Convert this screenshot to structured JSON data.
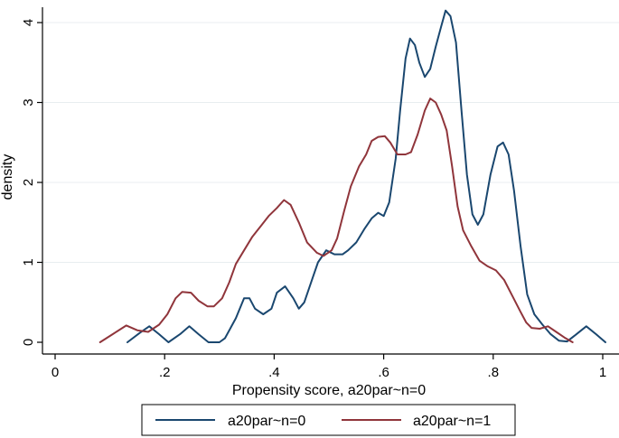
{
  "chart_data": {
    "type": "line",
    "title": "",
    "xlabel": "Propensity score, a20par~n=0",
    "ylabel": "density",
    "xlim": [
      0,
      1.0
    ],
    "ylim": [
      0,
      4.2
    ],
    "xticks": [
      0,
      0.2,
      0.4,
      0.6,
      0.8,
      1
    ],
    "xtick_labels": [
      "0",
      ".2",
      ".4",
      ".6",
      ".8",
      "1"
    ],
    "yticks": [
      0,
      1,
      2,
      3,
      4
    ],
    "ytick_labels": [
      "0",
      "1",
      "2",
      "3",
      "4"
    ],
    "grid": "horizontal",
    "legend_position": "bottom",
    "series": [
      {
        "name": "a20par~n=0",
        "color": "#1a476f",
        "points": [
          [
            0.132,
            0.0
          ],
          [
            0.155,
            0.12
          ],
          [
            0.172,
            0.2
          ],
          [
            0.19,
            0.1
          ],
          [
            0.207,
            0.0
          ],
          [
            0.228,
            0.1
          ],
          [
            0.245,
            0.2
          ],
          [
            0.262,
            0.1
          ],
          [
            0.28,
            0.0
          ],
          [
            0.3,
            0.0
          ],
          [
            0.31,
            0.05
          ],
          [
            0.33,
            0.3
          ],
          [
            0.345,
            0.55
          ],
          [
            0.355,
            0.55
          ],
          [
            0.365,
            0.42
          ],
          [
            0.38,
            0.35
          ],
          [
            0.395,
            0.42
          ],
          [
            0.405,
            0.62
          ],
          [
            0.42,
            0.7
          ],
          [
            0.435,
            0.55
          ],
          [
            0.445,
            0.42
          ],
          [
            0.455,
            0.5
          ],
          [
            0.47,
            0.8
          ],
          [
            0.48,
            1.0
          ],
          [
            0.495,
            1.15
          ],
          [
            0.51,
            1.1
          ],
          [
            0.525,
            1.1
          ],
          [
            0.535,
            1.15
          ],
          [
            0.55,
            1.25
          ],
          [
            0.565,
            1.42
          ],
          [
            0.578,
            1.55
          ],
          [
            0.59,
            1.62
          ],
          [
            0.6,
            1.58
          ],
          [
            0.61,
            1.75
          ],
          [
            0.622,
            2.3
          ],
          [
            0.63,
            2.9
          ],
          [
            0.64,
            3.55
          ],
          [
            0.648,
            3.8
          ],
          [
            0.657,
            3.72
          ],
          [
            0.665,
            3.5
          ],
          [
            0.675,
            3.32
          ],
          [
            0.685,
            3.42
          ],
          [
            0.695,
            3.7
          ],
          [
            0.705,
            3.95
          ],
          [
            0.713,
            4.15
          ],
          [
            0.722,
            4.08
          ],
          [
            0.732,
            3.75
          ],
          [
            0.742,
            2.9
          ],
          [
            0.752,
            2.1
          ],
          [
            0.762,
            1.6
          ],
          [
            0.772,
            1.47
          ],
          [
            0.782,
            1.6
          ],
          [
            0.795,
            2.1
          ],
          [
            0.808,
            2.45
          ],
          [
            0.818,
            2.5
          ],
          [
            0.828,
            2.35
          ],
          [
            0.838,
            1.9
          ],
          [
            0.85,
            1.2
          ],
          [
            0.862,
            0.6
          ],
          [
            0.875,
            0.35
          ],
          [
            0.89,
            0.22
          ],
          [
            0.905,
            0.1
          ],
          [
            0.92,
            0.02
          ],
          [
            0.935,
            0.01
          ],
          [
            0.952,
            0.1
          ],
          [
            0.97,
            0.2
          ],
          [
            0.988,
            0.1
          ],
          [
            1.005,
            0.0
          ]
        ]
      },
      {
        "name": "a20par~n=1",
        "color": "#90353b",
        "points": [
          [
            0.082,
            0.0
          ],
          [
            0.105,
            0.1
          ],
          [
            0.13,
            0.21
          ],
          [
            0.15,
            0.15
          ],
          [
            0.17,
            0.13
          ],
          [
            0.19,
            0.22
          ],
          [
            0.205,
            0.35
          ],
          [
            0.22,
            0.55
          ],
          [
            0.232,
            0.63
          ],
          [
            0.248,
            0.62
          ],
          [
            0.262,
            0.52
          ],
          [
            0.278,
            0.45
          ],
          [
            0.29,
            0.45
          ],
          [
            0.305,
            0.55
          ],
          [
            0.318,
            0.75
          ],
          [
            0.33,
            0.98
          ],
          [
            0.345,
            1.15
          ],
          [
            0.36,
            1.32
          ],
          [
            0.375,
            1.45
          ],
          [
            0.39,
            1.58
          ],
          [
            0.405,
            1.68
          ],
          [
            0.418,
            1.78
          ],
          [
            0.43,
            1.72
          ],
          [
            0.445,
            1.5
          ],
          [
            0.46,
            1.25
          ],
          [
            0.478,
            1.12
          ],
          [
            0.49,
            1.08
          ],
          [
            0.505,
            1.15
          ],
          [
            0.515,
            1.3
          ],
          [
            0.528,
            1.65
          ],
          [
            0.54,
            1.95
          ],
          [
            0.555,
            2.2
          ],
          [
            0.568,
            2.35
          ],
          [
            0.578,
            2.52
          ],
          [
            0.59,
            2.57
          ],
          [
            0.602,
            2.58
          ],
          [
            0.612,
            2.5
          ],
          [
            0.625,
            2.35
          ],
          [
            0.64,
            2.35
          ],
          [
            0.65,
            2.38
          ],
          [
            0.662,
            2.6
          ],
          [
            0.675,
            2.9
          ],
          [
            0.685,
            3.05
          ],
          [
            0.695,
            3.0
          ],
          [
            0.705,
            2.85
          ],
          [
            0.715,
            2.65
          ],
          [
            0.725,
            2.2
          ],
          [
            0.735,
            1.7
          ],
          [
            0.745,
            1.4
          ],
          [
            0.76,
            1.2
          ],
          [
            0.775,
            1.02
          ],
          [
            0.79,
            0.95
          ],
          [
            0.805,
            0.9
          ],
          [
            0.82,
            0.78
          ],
          [
            0.835,
            0.58
          ],
          [
            0.85,
            0.38
          ],
          [
            0.86,
            0.25
          ],
          [
            0.87,
            0.18
          ],
          [
            0.885,
            0.17
          ],
          [
            0.9,
            0.2
          ],
          [
            0.915,
            0.13
          ],
          [
            0.93,
            0.06
          ],
          [
            0.945,
            0.0
          ]
        ]
      }
    ]
  }
}
